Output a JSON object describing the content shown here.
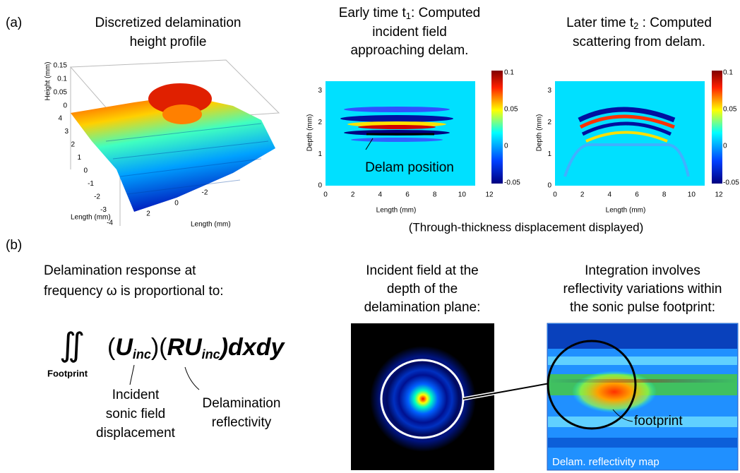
{
  "panel_a": {
    "label": "(a)",
    "height_profile": {
      "title": [
        "Discretized delamination",
        "height profile"
      ],
      "z_label": "Height (mm)",
      "z_ticks": [
        "0.15",
        "0.1",
        "0.05",
        "0"
      ],
      "y_label": "Length (mm)",
      "y_ticks": [
        "4",
        "3",
        "2",
        "1",
        "0",
        "-1",
        "-2",
        "-3",
        "-4"
      ],
      "x_label": "Length (mm)",
      "x_ticks": [
        "2",
        "0",
        "-2"
      ]
    },
    "early": {
      "title": [
        "Early time t",
        "1",
        ": Computed",
        "incident field",
        "approaching delam."
      ],
      "annotation": "Delam position"
    },
    "later": {
      "title": [
        "Later time t",
        "2",
        " : Computed",
        "scattering from delam."
      ]
    },
    "axes": {
      "y_label": "Depth (mm)",
      "y_ticks": [
        "0",
        "1",
        "2",
        "3"
      ],
      "x_label": "Length (mm)",
      "x_ticks": [
        "0",
        "2",
        "4",
        "6",
        "8",
        "10",
        "12"
      ],
      "colorbar_ticks": [
        "0.1",
        "0.05",
        "0",
        "-0.05"
      ]
    },
    "caption": "(Through-thickness displacement displayed)"
  },
  "panel_b": {
    "label": "(b)",
    "statement": [
      "Delamination response at",
      "frequency ω is proportional to:"
    ],
    "formula": {
      "integral": "∬",
      "domain": "Footprint",
      "parts": [
        "(",
        "U",
        "inc",
        ")(",
        "RU",
        "inc",
        ")dxdy"
      ]
    },
    "term_labels": {
      "incident": [
        "Incident",
        "sonic field",
        "displacement"
      ],
      "reflectivity": [
        "Delamination",
        "reflectivity"
      ]
    },
    "incident_title": [
      "Incident field at the",
      "depth of the",
      "delamination plane:"
    ],
    "integration_title": [
      "Integration involves",
      "reflectivity variations within",
      "the sonic pulse footprint:"
    ],
    "footprint_label": "footprint",
    "map_label": "Delam. reflectivity map"
  }
}
